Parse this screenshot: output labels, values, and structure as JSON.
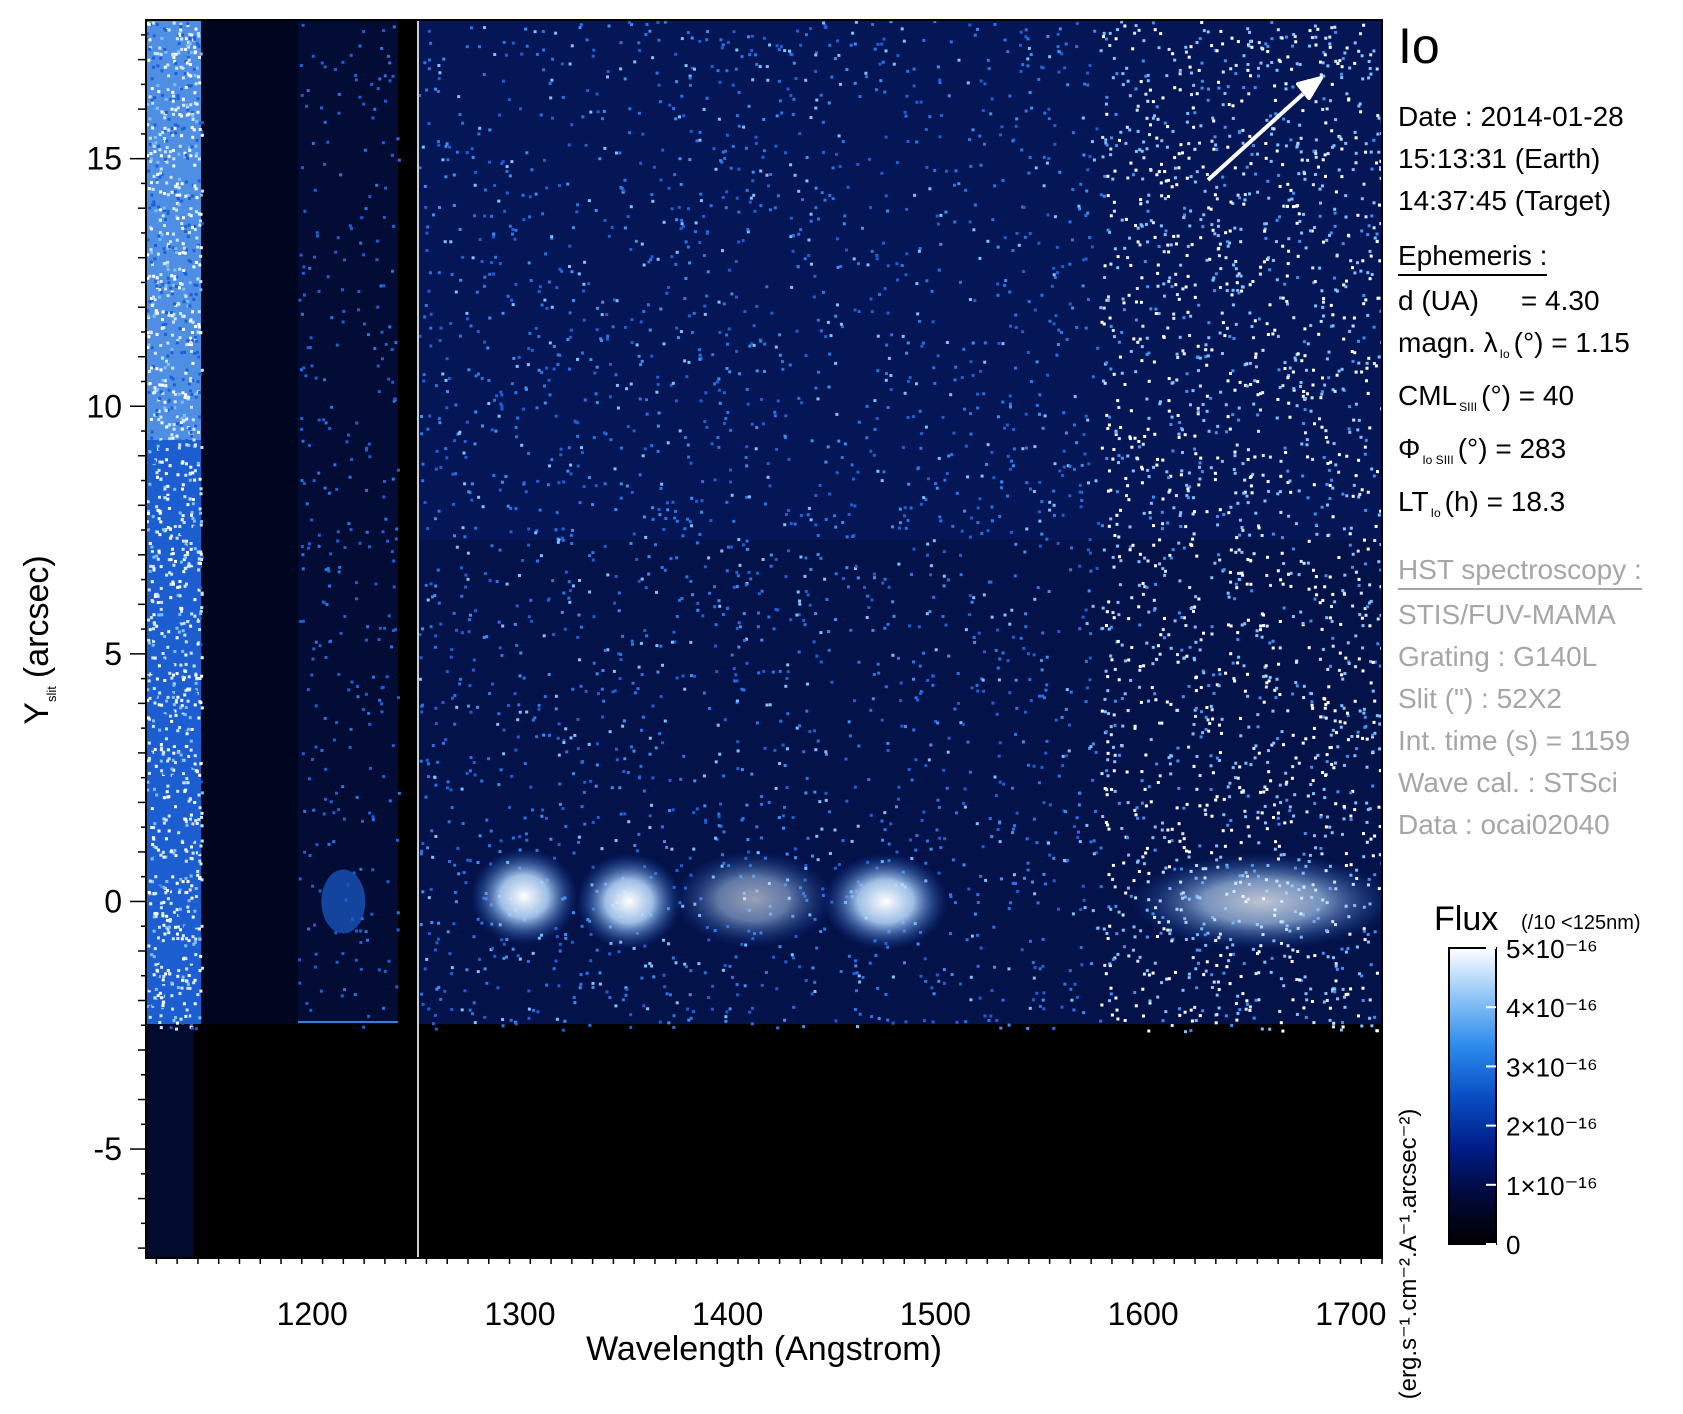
{
  "chart_data": {
    "type": "heatmap",
    "title": "Io",
    "xlabel": "Wavelength (Angstrom)",
    "ylabel": "Y",
    "ylabel_subscript": "slit",
    "ylabel_unit": "(arcsec)",
    "xlim": [
      1120,
      1715
    ],
    "ylim": [
      -7.2,
      17.8
    ],
    "x_ticks": [
      1200,
      1300,
      1400,
      1500,
      1600,
      1700
    ],
    "x_tick_labels": [
      "1200",
      "1300",
      "1400",
      "1500",
      "1600",
      "1700"
    ],
    "y_ticks": [
      -5,
      0,
      5,
      10,
      15
    ],
    "y_tick_labels": [
      "-5",
      "0",
      "5",
      "10",
      "15"
    ],
    "colorbar": {
      "title": "Flux",
      "note": "(/10 <125nm)",
      "unit_label": "(erg.s⁻¹.cm⁻².A⁻¹.arcsec⁻²)",
      "range": [
        0,
        5e-16
      ],
      "ticks": [
        0,
        1e-16,
        2e-16,
        3e-16,
        4e-16,
        5e-16
      ],
      "tick_labels": [
        "0",
        "1×10⁻¹⁶",
        "2×10⁻¹⁶",
        "3×10⁻¹⁶",
        "4×10⁻¹⁶",
        "5×10⁻¹⁶"
      ],
      "colormap": [
        "#000000",
        "#000a3c",
        "#001d8a",
        "#0a4fc4",
        "#2d8bec",
        "#8cc4f6",
        "#ffffff"
      ]
    },
    "emission_blobs": [
      {
        "x_range": [
          1282,
          1322
        ],
        "y": 0.1,
        "level": 1.0
      },
      {
        "x_range": [
          1333,
          1372
        ],
        "y": 0.0,
        "level": 1.0
      },
      {
        "x_range": [
          1380,
          1445
        ],
        "y": 0.05,
        "level": 0.6
      },
      {
        "x_range": [
          1452,
          1500
        ],
        "y": 0.0,
        "level": 1.0
      },
      {
        "x_range": [
          1600,
          1715
        ],
        "y": 0.0,
        "level": 0.75
      }
    ],
    "detector_edge_y": -2.6,
    "arrow_direction": "upper-right"
  },
  "info_panel": {
    "title": "Io",
    "date_line": "Date : 2014-01-28",
    "time_earth": "15:13:31 (Earth)",
    "time_target": "14:37:45 (Target)",
    "ephemeris_heading": "Ephemeris :",
    "eph_d_label": "d (UA)",
    "eph_d_value": "= 4.30",
    "eph_magn_label": "magn. λ",
    "eph_magn_sub": "Io",
    "eph_magn_value": "(°)  = 1.15",
    "eph_cml_label": "CML",
    "eph_cml_sub": "SIII",
    "eph_cml_value": "(°) = 40",
    "eph_phi_label": "Φ",
    "eph_phi_sub": "Io SIII",
    "eph_phi_value": "(°) = 283",
    "eph_lt_label": "LT",
    "eph_lt_sub": "Io",
    "eph_lt_value": "(h) = 18.3",
    "hst_heading": "HST spectroscopy :",
    "hst_instrument": "STIS/FUV-MAMA",
    "hst_grating": "Grating : G140L",
    "hst_slit": "Slit (\") : 52X2",
    "hst_int_time": "Int. time (s) = 1159",
    "hst_wave_cal": "Wave cal. : STSci",
    "hst_data": "Data : ocai02040"
  }
}
